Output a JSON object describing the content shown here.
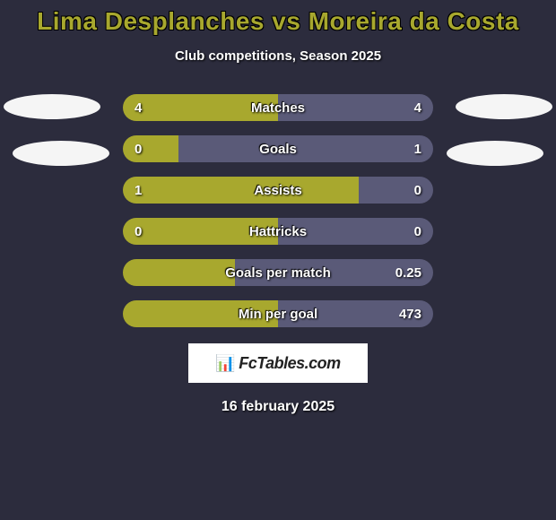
{
  "title": "Lima Desplanches vs Moreira da Costa",
  "subtitle": "Club competitions, Season 2025",
  "date": "16 february 2025",
  "colors": {
    "background": "#2c2c3d",
    "accent": "#a8a82e",
    "bar_right": "#5a5a78",
    "text": "#ffffff",
    "ellipse": "#f5f5f5"
  },
  "logo_text": "FcTables.com",
  "stats": [
    {
      "label": "Matches",
      "left_val": "4",
      "right_val": "4",
      "left_pct": 50,
      "right_pct": 50
    },
    {
      "label": "Goals",
      "left_val": "0",
      "right_val": "1",
      "left_pct": 18,
      "right_pct": 82
    },
    {
      "label": "Assists",
      "left_val": "1",
      "right_val": "0",
      "left_pct": 76,
      "right_pct": 24
    },
    {
      "label": "Hattricks",
      "left_val": "0",
      "right_val": "0",
      "left_pct": 50,
      "right_pct": 50
    },
    {
      "label": "Goals per match",
      "left_val": "",
      "right_val": "0.25",
      "left_pct": 36,
      "right_pct": 64
    },
    {
      "label": "Min per goal",
      "left_val": "",
      "right_val": "473",
      "left_pct": 50,
      "right_pct": 50
    }
  ]
}
